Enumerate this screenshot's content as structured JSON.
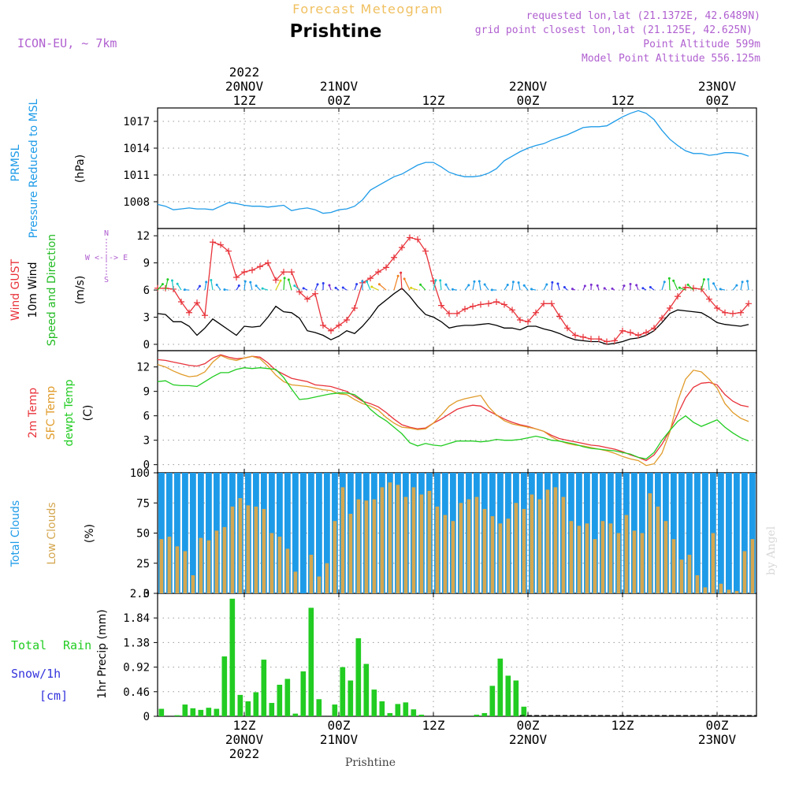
{
  "colors": {
    "pressure": "#1e9be8",
    "gust": "#e8333a",
    "wind": "#000000",
    "windLabel": "#22bb22",
    "temp2m": "#e8333a",
    "sfc": "#e09b2a",
    "dewpt": "#22cc22",
    "totalClouds": "#1e9be8",
    "lowClouds": "#d4a750",
    "rain": "#22cc22",
    "snow": "#3333dd",
    "header": "#b060d0",
    "title": "#f0c060",
    "grid": "#999999"
  },
  "header": {
    "forecast_title": "Forecast Meteogram",
    "place": "Prishtine",
    "model": "ICON-EU, ~ 7km",
    "requested": "requested lon,lat (21.1372E, 42.6489N)",
    "grid_point": "grid point closest lon,lat (21.125E, 42.625N)",
    "point_alt": "Point Altitude 599m",
    "model_alt": "Model Point Altitude 556.125m"
  },
  "time_axis": {
    "top": [
      {
        "lines": [
          "2022",
          "20NOV",
          "12Z"
        ]
      },
      {
        "lines": [
          "21NOV",
          "00Z"
        ]
      },
      {
        "lines": [
          "12Z"
        ]
      },
      {
        "lines": [
          "22NOV",
          "00Z"
        ]
      },
      {
        "lines": [
          "12Z"
        ]
      },
      {
        "lines": [
          "23NOV",
          "00Z"
        ]
      }
    ],
    "bottom": [
      {
        "lines": [
          "12Z",
          "20NOV",
          "2022"
        ]
      },
      {
        "lines": [
          "00Z",
          "21NOV"
        ]
      },
      {
        "lines": [
          "12Z"
        ]
      },
      {
        "lines": [
          "00Z",
          "22NOV"
        ]
      },
      {
        "lines": [
          "12Z"
        ]
      },
      {
        "lines": [
          "00Z",
          "23NOV"
        ]
      }
    ],
    "hours": [
      0,
      12,
      24,
      36,
      48,
      60
    ],
    "start_hour": -11,
    "end_hour": 65,
    "footer": "Prishtine"
  },
  "watermark": "by Angel",
  "panel_labels": {
    "pressure": [
      "PRMSL",
      "Pressure Reduced to MSL",
      "(hPa)"
    ],
    "wind": [
      "Wind GUST",
      "10m Wind",
      "Speed and Direction",
      "(m/s)"
    ],
    "compass": [
      "N",
      "W <-|-> E",
      "S"
    ],
    "temp": [
      "2m Temp",
      "SFC Temp",
      "dewpt Temp",
      "(C)"
    ],
    "clouds": [
      "Total Clouds",
      "Low Clouds",
      "(%)"
    ],
    "precip": [
      "Total",
      "Rain",
      "Snow/1h",
      "[cm]",
      "1hr Precip (mm)"
    ]
  },
  "chart_data": [
    {
      "type": "line",
      "title": "PRMSL Pressure Reduced to MSL",
      "ylabel": "(hPa)",
      "ylim": [
        1005.0,
        1018.5
      ],
      "yticks": [
        1008,
        1011,
        1014,
        1017
      ],
      "x_start": -11,
      "x_step": 1,
      "series": [
        {
          "name": "PRMSL",
          "values": [
            1007.7,
            1007.5,
            1007.1,
            1007.2,
            1007.3,
            1007.2,
            1007.2,
            1007.1,
            1007.5,
            1007.9,
            1007.8,
            1007.6,
            1007.5,
            1007.5,
            1007.4,
            1007.5,
            1007.6,
            1007.0,
            1007.2,
            1007.3,
            1007.1,
            1006.7,
            1006.8,
            1007.1,
            1007.2,
            1007.5,
            1008.2,
            1009.3,
            1009.8,
            1010.3,
            1010.8,
            1011.1,
            1011.6,
            1012.1,
            1012.4,
            1012.4,
            1011.9,
            1011.3,
            1011.0,
            1010.8,
            1010.8,
            1010.9,
            1011.2,
            1011.7,
            1012.6,
            1013.1,
            1013.6,
            1014.0,
            1014.3,
            1014.5,
            1014.9,
            1015.2,
            1015.5,
            1015.9,
            1016.3,
            1016.4,
            1016.4,
            1016.5,
            1017.0,
            1017.5,
            1017.9,
            1018.2,
            1017.9,
            1017.2,
            1016.0,
            1015.0,
            1014.3,
            1013.7,
            1013.4,
            1013.4,
            1013.2,
            1013.3,
            1013.5,
            1013.5,
            1013.4,
            1013.1
          ]
        }
      ]
    },
    {
      "type": "line",
      "title": "Wind GUST / 10m Wind Speed and Direction",
      "ylabel": "(m/s)",
      "ylim": [
        -0.7,
        12.8
      ],
      "yticks": [
        0,
        3,
        6,
        9,
        12
      ],
      "x_start": -11,
      "x_step": 1,
      "series": [
        {
          "name": "Wind GUST",
          "values": [
            6.2,
            6.2,
            6.1,
            4.7,
            3.5,
            4.6,
            3.2,
            11.3,
            11.0,
            10.3,
            7.4,
            8.0,
            8.2,
            8.6,
            9.0,
            7.1,
            8.0,
            8.0,
            5.8,
            5.0,
            5.6,
            2.1,
            1.5,
            2.1,
            2.7,
            4.0,
            6.8,
            7.3,
            8.0,
            8.5,
            9.6,
            10.7,
            11.8,
            11.6,
            10.3,
            7.0,
            4.3,
            3.4,
            3.4,
            3.9,
            4.2,
            4.4,
            4.5,
            4.7,
            4.4,
            3.8,
            2.7,
            2.5,
            3.5,
            4.5,
            4.5,
            3.1,
            1.8,
            1.0,
            0.8,
            0.6,
            0.6,
            0.3,
            0.4,
            1.5,
            1.3,
            1.0,
            1.3,
            1.8,
            2.9,
            4.0,
            5.3,
            6.3,
            6.2,
            6.1,
            5.0,
            4.0,
            3.5,
            3.4,
            3.5,
            4.5
          ]
        },
        {
          "name": "10m Wind",
          "values": [
            3.4,
            3.3,
            2.5,
            2.5,
            2.0,
            1.0,
            1.8,
            2.8,
            2.2,
            1.6,
            1.0,
            2.0,
            1.9,
            2.0,
            3.0,
            4.2,
            3.6,
            3.5,
            2.9,
            1.5,
            1.3,
            1.0,
            0.5,
            0.9,
            1.5,
            1.2,
            2.0,
            3.0,
            4.2,
            4.9,
            5.6,
            6.2,
            5.3,
            4.2,
            3.3,
            3.0,
            2.5,
            1.8,
            2.0,
            2.1,
            2.1,
            2.2,
            2.3,
            2.1,
            1.8,
            1.8,
            1.6,
            2.0,
            2.0,
            1.7,
            1.5,
            1.2,
            0.8,
            0.5,
            0.4,
            0.3,
            0.3,
            0.0,
            0.1,
            0.3,
            0.6,
            0.7,
            1.0,
            1.5,
            2.4,
            3.4,
            3.8,
            3.7,
            3.6,
            3.5,
            3.0,
            2.4,
            2.2,
            2.1,
            2.0,
            2.2
          ]
        }
      ]
    },
    {
      "type": "line",
      "title": "2m Temp / SFC Temp / dewpt Temp",
      "ylabel": "(C)",
      "ylim": [
        -1.0,
        14.0
      ],
      "yticks": [
        0,
        3,
        6,
        9,
        12
      ],
      "x_start": -11,
      "x_step": 1,
      "series": [
        {
          "name": "2m Temp",
          "values": [
            12.9,
            12.8,
            12.6,
            12.4,
            12.2,
            12.1,
            12.4,
            13.1,
            13.5,
            13.2,
            13.0,
            13.1,
            13.3,
            13.2,
            12.5,
            11.6,
            11.1,
            10.6,
            10.4,
            10.2,
            9.8,
            9.7,
            9.6,
            9.3,
            9.0,
            8.4,
            7.8,
            7.5,
            7.1,
            6.4,
            5.6,
            4.9,
            4.6,
            4.4,
            4.5,
            5.1,
            5.6,
            6.2,
            6.8,
            7.1,
            7.3,
            7.2,
            6.6,
            6.1,
            5.6,
            5.2,
            4.9,
            4.7,
            4.4,
            4.1,
            3.6,
            3.2,
            3.0,
            2.8,
            2.6,
            2.4,
            2.3,
            2.1,
            1.9,
            1.6,
            1.2,
            0.9,
            0.5,
            1.2,
            2.5,
            4.2,
            6.2,
            8.2,
            9.5,
            10.0,
            10.1,
            9.8,
            8.6,
            7.8,
            7.3,
            7.1
          ]
        },
        {
          "name": "SFC Temp",
          "values": [
            12.3,
            12.0,
            11.5,
            11.1,
            10.8,
            10.9,
            11.4,
            12.6,
            13.4,
            13.0,
            12.8,
            13.1,
            13.3,
            13.0,
            12.1,
            11.0,
            10.2,
            9.8,
            9.7,
            9.6,
            9.4,
            9.2,
            9.1,
            8.7,
            8.6,
            8.0,
            7.5,
            7.2,
            6.7,
            5.8,
            5.1,
            4.6,
            4.5,
            4.3,
            4.4,
            5.1,
            6.1,
            7.2,
            7.8,
            8.1,
            8.3,
            8.5,
            7.1,
            6.1,
            5.4,
            5.0,
            4.8,
            4.6,
            4.4,
            4.1,
            3.4,
            2.9,
            2.6,
            2.4,
            2.3,
            2.1,
            1.9,
            1.7,
            1.4,
            1.0,
            0.7,
            0.5,
            -0.1,
            0.1,
            1.4,
            4.0,
            7.8,
            10.5,
            11.6,
            11.4,
            10.5,
            9.4,
            7.5,
            6.4,
            5.7,
            5.3
          ]
        },
        {
          "name": "dewpt Temp",
          "values": [
            10.2,
            10.3,
            9.8,
            9.7,
            9.7,
            9.6,
            10.2,
            10.8,
            11.3,
            11.3,
            11.7,
            11.9,
            11.8,
            11.9,
            11.8,
            11.7,
            10.7,
            9.3,
            8.0,
            8.1,
            8.3,
            8.5,
            8.7,
            8.8,
            8.8,
            8.6,
            7.9,
            6.8,
            6.0,
            5.4,
            4.6,
            3.8,
            2.7,
            2.3,
            2.6,
            2.4,
            2.3,
            2.6,
            2.9,
            2.9,
            2.9,
            2.8,
            2.9,
            3.1,
            3.0,
            3.0,
            3.1,
            3.3,
            3.5,
            3.3,
            3.0,
            2.9,
            2.7,
            2.5,
            2.2,
            2.0,
            1.9,
            1.8,
            1.7,
            1.5,
            1.3,
            0.9,
            0.7,
            1.5,
            3.0,
            4.2,
            5.3,
            6.0,
            5.2,
            4.7,
            5.1,
            5.5,
            4.6,
            3.9,
            3.3,
            2.9
          ]
        }
      ]
    },
    {
      "type": "bar",
      "title": "Total Clouds / Low Clouds",
      "ylabel": "(%)",
      "ylim": [
        0,
        100
      ],
      "yticks": [
        0,
        25,
        50,
        75,
        100
      ],
      "x_start": -11,
      "x_step": 1,
      "series": [
        {
          "name": "Total Clouds",
          "values": [
            100,
            100,
            100,
            100,
            100,
            100,
            100,
            100,
            100,
            100,
            100,
            100,
            100,
            100,
            100,
            100,
            100,
            100,
            100,
            100,
            100,
            100,
            100,
            100,
            100,
            100,
            100,
            100,
            100,
            100,
            100,
            100,
            100,
            100,
            100,
            100,
            100,
            100,
            100,
            100,
            100,
            100,
            100,
            100,
            100,
            100,
            100,
            100,
            100,
            100,
            100,
            100,
            100,
            100,
            100,
            100,
            100,
            100,
            100,
            100,
            100,
            100,
            100,
            100,
            100,
            100,
            100,
            100,
            100,
            100,
            100,
            100,
            100,
            100,
            100,
            100
          ]
        },
        {
          "name": "Low Clouds",
          "values": [
            45,
            47,
            39,
            35,
            15,
            46,
            44,
            52,
            55,
            72,
            79,
            73,
            72,
            70,
            50,
            47,
            37,
            18,
            0,
            32,
            14,
            25,
            60,
            88,
            66,
            78,
            77,
            78,
            88,
            92,
            90,
            80,
            88,
            82,
            85,
            72,
            65,
            60,
            75,
            78,
            80,
            70,
            64,
            58,
            62,
            75,
            70,
            82,
            78,
            86,
            88,
            80,
            60,
            56,
            58,
            45,
            60,
            58,
            50,
            65,
            52,
            50,
            83,
            72,
            60,
            45,
            28,
            32,
            15,
            5,
            50,
            8,
            3,
            2,
            35,
            45
          ]
        }
      ]
    },
    {
      "type": "bar",
      "title": "1hr Precip (mm)",
      "ylabel": "1hr Precip (mm)",
      "ylim": [
        0,
        2.3
      ],
      "yticks": [
        0,
        0.46,
        0.92,
        1.38,
        1.84,
        2.3
      ],
      "x_start": -11,
      "x_step": 1,
      "series": [
        {
          "name": "Total Rain",
          "values": [
            0.14,
            0.0,
            0.02,
            0.22,
            0.15,
            0.12,
            0.16,
            0.14,
            1.12,
            2.2,
            0.4,
            0.28,
            0.45,
            1.06,
            0.25,
            0.59,
            0.7,
            0.05,
            0.84,
            2.03,
            0.32,
            0.0,
            0.22,
            0.92,
            0.67,
            1.46,
            0.98,
            0.5,
            0.28,
            0.06,
            0.23,
            0.26,
            0.13,
            0.03,
            0.0,
            0.0,
            0.0,
            0.0,
            0.0,
            0.0,
            0.03,
            0.06,
            0.57,
            1.08,
            0.76,
            0.67,
            0.18,
            0.0,
            0.0,
            0.0,
            0.0,
            0.0,
            0.0,
            0.0,
            0.0,
            0.0,
            0.0,
            0.0,
            0.0,
            0.0,
            0.0,
            0.0,
            0.0,
            0.0,
            0.0,
            0.0,
            0.0,
            0.0,
            0.0,
            0.0,
            0.0,
            0.0,
            0.0,
            0.0,
            0.0,
            0.0
          ]
        },
        {
          "name": "Snow/1h",
          "values": []
        }
      ]
    }
  ]
}
